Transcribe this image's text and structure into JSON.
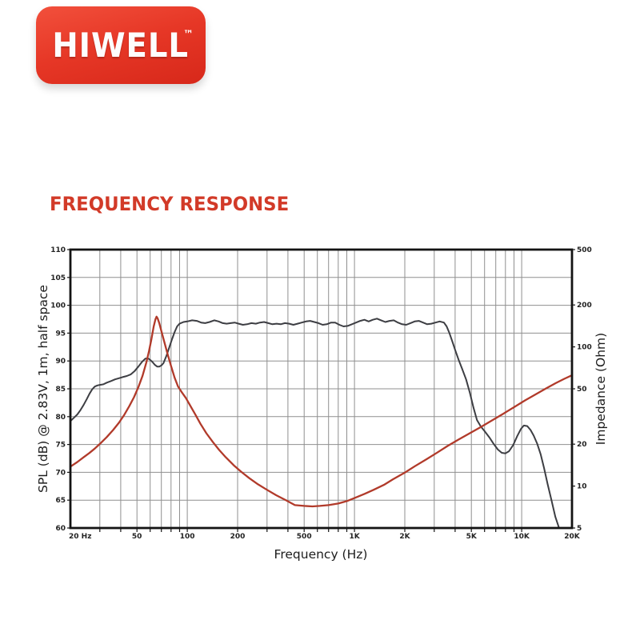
{
  "logo": {
    "text": "HIWELL",
    "trademark": "™",
    "bg_color": "#e63726"
  },
  "title": {
    "text": "FREQUENCY RESPONSE",
    "color": "#d23a28"
  },
  "colors": {
    "spl_curve": "#3d3e43",
    "impedance_curve": "#b13a2a",
    "grid": "#8f8f8f",
    "plot_border": "#141414",
    "logo_red": "#e63726",
    "title_red": "#d23a28"
  },
  "chart_data": {
    "type": "line",
    "title": "FREQUENCY RESPONSE",
    "xlabel": "Frequency (Hz)",
    "ylabel_left": "SPL (dB) @ 2.83V, 1m, half space",
    "ylabel_right": "Impedance (Ohm)",
    "x_scale": "log",
    "x_range": [
      20,
      20000
    ],
    "y_left_range": [
      60,
      110
    ],
    "y_left_step": 5,
    "y_right_scale": "log",
    "y_right_range": [
      5,
      500
    ],
    "grid": "on",
    "legend": "none",
    "x_ticks": [
      {
        "f": 20,
        "label": "20 Hz"
      },
      {
        "f": 50,
        "label": "50"
      },
      {
        "f": 100,
        "label": "100"
      },
      {
        "f": 200,
        "label": "200"
      },
      {
        "f": 500,
        "label": "500"
      },
      {
        "f": 1000,
        "label": "1K"
      },
      {
        "f": 2000,
        "label": "2K"
      },
      {
        "f": 5000,
        "label": "5K"
      },
      {
        "f": 10000,
        "label": "10K"
      },
      {
        "f": 20000,
        "label": "20K"
      }
    ],
    "y_left_ticks": [
      110,
      105,
      100,
      95,
      90,
      85,
      80,
      75,
      70,
      65,
      60
    ],
    "y_right_ticks": [
      500,
      200,
      100,
      50,
      20,
      10,
      5
    ],
    "series": [
      {
        "name": "SPL",
        "axis": "left",
        "color": "#3d3e43",
        "points": [
          [
            20,
            79.2
          ],
          [
            21,
            79.8
          ],
          [
            22,
            80.4
          ],
          [
            23,
            81.2
          ],
          [
            24,
            82.1
          ],
          [
            25,
            83.1
          ],
          [
            26,
            84.1
          ],
          [
            27,
            84.9
          ],
          [
            28,
            85.4
          ],
          [
            29,
            85.6
          ],
          [
            30,
            85.7
          ],
          [
            31.5,
            85.8
          ],
          [
            33,
            86.1
          ],
          [
            35,
            86.4
          ],
          [
            37,
            86.7
          ],
          [
            39,
            86.9
          ],
          [
            41,
            87.1
          ],
          [
            43.5,
            87.3
          ],
          [
            46,
            87.6
          ],
          [
            48.5,
            88.2
          ],
          [
            51,
            89.0
          ],
          [
            53.5,
            89.8
          ],
          [
            56,
            90.4
          ],
          [
            58,
            90.5
          ],
          [
            60,
            90.2
          ],
          [
            62,
            89.8
          ],
          [
            64,
            89.3
          ],
          [
            66,
            89.0
          ],
          [
            68,
            89.0
          ],
          [
            70,
            89.2
          ],
          [
            72,
            89.6
          ],
          [
            75,
            90.9
          ],
          [
            78,
            92.4
          ],
          [
            81,
            93.9
          ],
          [
            84,
            95.2
          ],
          [
            87,
            96.2
          ],
          [
            90,
            96.7
          ],
          [
            95,
            97.0
          ],
          [
            100,
            97.1
          ],
          [
            107,
            97.3
          ],
          [
            114,
            97.2
          ],
          [
            121,
            96.9
          ],
          [
            128,
            96.8
          ],
          [
            136,
            97.0
          ],
          [
            145,
            97.3
          ],
          [
            154,
            97.1
          ],
          [
            163,
            96.8
          ],
          [
            172,
            96.7
          ],
          [
            182,
            96.8
          ],
          [
            192,
            96.9
          ],
          [
            203,
            96.7
          ],
          [
            215,
            96.5
          ],
          [
            228,
            96.6
          ],
          [
            242,
            96.8
          ],
          [
            257,
            96.7
          ],
          [
            272,
            96.9
          ],
          [
            288,
            97.0
          ],
          [
            305,
            96.8
          ],
          [
            323,
            96.6
          ],
          [
            342,
            96.7
          ],
          [
            362,
            96.6
          ],
          [
            384,
            96.8
          ],
          [
            407,
            96.7
          ],
          [
            431,
            96.5
          ],
          [
            457,
            96.7
          ],
          [
            484,
            96.9
          ],
          [
            513,
            97.1
          ],
          [
            543,
            97.2
          ],
          [
            575,
            97.0
          ],
          [
            609,
            96.8
          ],
          [
            645,
            96.5
          ],
          [
            683,
            96.6
          ],
          [
            724,
            96.9
          ],
          [
            767,
            96.9
          ],
          [
            812,
            96.5
          ],
          [
            860,
            96.2
          ],
          [
            911,
            96.3
          ],
          [
            965,
            96.6
          ],
          [
            1022,
            96.9
          ],
          [
            1083,
            97.2
          ],
          [
            1147,
            97.4
          ],
          [
            1215,
            97.1
          ],
          [
            1287,
            97.4
          ],
          [
            1363,
            97.6
          ],
          [
            1444,
            97.3
          ],
          [
            1530,
            97.0
          ],
          [
            1621,
            97.2
          ],
          [
            1717,
            97.3
          ],
          [
            1819,
            96.9
          ],
          [
            1927,
            96.6
          ],
          [
            2041,
            96.5
          ],
          [
            2162,
            96.8
          ],
          [
            2290,
            97.1
          ],
          [
            2426,
            97.2
          ],
          [
            2570,
            96.9
          ],
          [
            2722,
            96.6
          ],
          [
            2883,
            96.7
          ],
          [
            3054,
            96.9
          ],
          [
            3235,
            97.1
          ],
          [
            3427,
            96.9
          ],
          [
            3560,
            96.2
          ],
          [
            3700,
            95.0
          ],
          [
            3850,
            93.5
          ],
          [
            4000,
            92.0
          ],
          [
            4200,
            90.2
          ],
          [
            4400,
            88.6
          ],
          [
            4650,
            86.7
          ],
          [
            4900,
            84.3
          ],
          [
            5150,
            81.6
          ],
          [
            5400,
            79.4
          ],
          [
            5700,
            78.2
          ],
          [
            6000,
            77.4
          ],
          [
            6400,
            76.3
          ],
          [
            6800,
            75.1
          ],
          [
            7200,
            74.1
          ],
          [
            7600,
            73.5
          ],
          [
            8000,
            73.4
          ],
          [
            8400,
            73.8
          ],
          [
            8900,
            74.9
          ],
          [
            9400,
            76.5
          ],
          [
            9900,
            77.8
          ],
          [
            10300,
            78.4
          ],
          [
            10800,
            78.3
          ],
          [
            11300,
            77.6
          ],
          [
            11800,
            76.6
          ],
          [
            12400,
            75.1
          ],
          [
            13000,
            73.2
          ],
          [
            13600,
            70.8
          ],
          [
            14300,
            67.9
          ],
          [
            15100,
            64.9
          ],
          [
            15900,
            62.0
          ],
          [
            16700,
            60.1
          ]
        ]
      },
      {
        "name": "Impedance",
        "axis": "right",
        "color": "#b13a2a",
        "points": [
          [
            20,
            13.8
          ],
          [
            22,
            14.9
          ],
          [
            24,
            16.1
          ],
          [
            26,
            17.3
          ],
          [
            28,
            18.6
          ],
          [
            30,
            20.1
          ],
          [
            33,
            22.5
          ],
          [
            36,
            25.3
          ],
          [
            39,
            28.5
          ],
          [
            42,
            32.5
          ],
          [
            45,
            37.5
          ],
          [
            48,
            43.5
          ],
          [
            51,
            51.5
          ],
          [
            54,
            62
          ],
          [
            57,
            78
          ],
          [
            59,
            93
          ],
          [
            61,
            113
          ],
          [
            63,
            140
          ],
          [
            64.5,
            158
          ],
          [
            65.5,
            165
          ],
          [
            66.5,
            160
          ],
          [
            68,
            148
          ],
          [
            70,
            130
          ],
          [
            73,
            108
          ],
          [
            76,
            90
          ],
          [
            80,
            73
          ],
          [
            84,
            60
          ],
          [
            88,
            52
          ],
          [
            93,
            47
          ],
          [
            98,
            43
          ],
          [
            104,
            38
          ],
          [
            112,
            32.5
          ],
          [
            120,
            28
          ],
          [
            130,
            24
          ],
          [
            142,
            20.8
          ],
          [
            155,
            18.2
          ],
          [
            170,
            16.1
          ],
          [
            190,
            14.1
          ],
          [
            210,
            12.7
          ],
          [
            235,
            11.4
          ],
          [
            265,
            10.3
          ],
          [
            300,
            9.4
          ],
          [
            340,
            8.6
          ],
          [
            390,
            7.9
          ],
          [
            440,
            7.3
          ],
          [
            500,
            7.2
          ],
          [
            560,
            7.15
          ],
          [
            620,
            7.2
          ],
          [
            700,
            7.3
          ],
          [
            800,
            7.5
          ],
          [
            900,
            7.8
          ],
          [
            1000,
            8.2
          ],
          [
            1150,
            8.8
          ],
          [
            1300,
            9.4
          ],
          [
            1500,
            10.2
          ],
          [
            1700,
            11.2
          ],
          [
            2000,
            12.5
          ],
          [
            2300,
            13.9
          ],
          [
            2700,
            15.6
          ],
          [
            3100,
            17.3
          ],
          [
            3600,
            19.4
          ],
          [
            4200,
            21.6
          ],
          [
            4900,
            24
          ],
          [
            5700,
            26.6
          ],
          [
            6600,
            29.5
          ],
          [
            7700,
            32.9
          ],
          [
            9000,
            36.9
          ],
          [
            10500,
            41.3
          ],
          [
            12000,
            45.3
          ],
          [
            14000,
            50.3
          ],
          [
            16000,
            54.9
          ],
          [
            18000,
            59
          ],
          [
            20000,
            62.5
          ]
        ]
      }
    ]
  }
}
